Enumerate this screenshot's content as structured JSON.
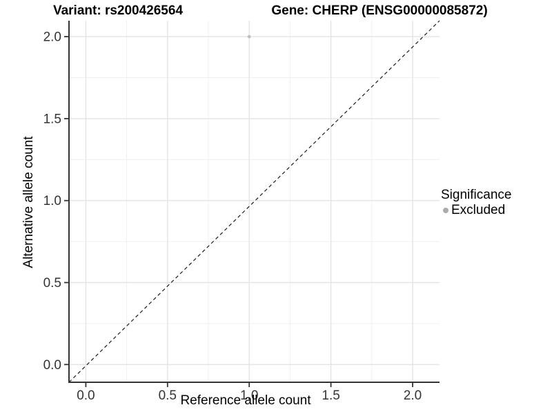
{
  "title": {
    "variant": "Variant: rs200426564",
    "gene": "Gene: CHERP (ENSG00000085872)"
  },
  "chart_data": {
    "type": "scatter",
    "title": "Variant: rs200426564   Gene: CHERP (ENSG00000085872)",
    "xlabel": "Reference allele count",
    "ylabel": "Alternative allele count",
    "xlim": [
      -0.1,
      2.1
    ],
    "ylim": [
      -0.1,
      2.1
    ],
    "x_ticks": [
      0.0,
      0.5,
      1.0,
      1.5,
      2.0
    ],
    "y_ticks": [
      0.0,
      0.5,
      1.0,
      1.5,
      2.0
    ],
    "x_tick_labels": [
      "0.0",
      "0.5",
      "1.0",
      "1.5",
      "2.0"
    ],
    "y_tick_labels": [
      "0.0",
      "0.5",
      "1.0",
      "1.5",
      "2.0"
    ],
    "minor_ticks": [
      0.25,
      0.75,
      1.25,
      1.75
    ],
    "grid": true,
    "series": [
      {
        "name": "Excluded",
        "color": "#bdbdbd",
        "points": [
          {
            "x": 1.0,
            "y": 2.0
          }
        ]
      }
    ],
    "reference_line": {
      "type": "identity",
      "style": "dashed",
      "color": "#1a1a1a"
    },
    "legend": {
      "title": "Significance",
      "position": "right",
      "items": [
        {
          "label": "Excluded",
          "color": "#acacac"
        }
      ]
    },
    "style_colors": {
      "major_grid": "#e4e4e4",
      "minor_grid": "#efefef",
      "axis_line": "#333333",
      "tick_mark": "#333333",
      "tick_text": "#333333"
    }
  }
}
